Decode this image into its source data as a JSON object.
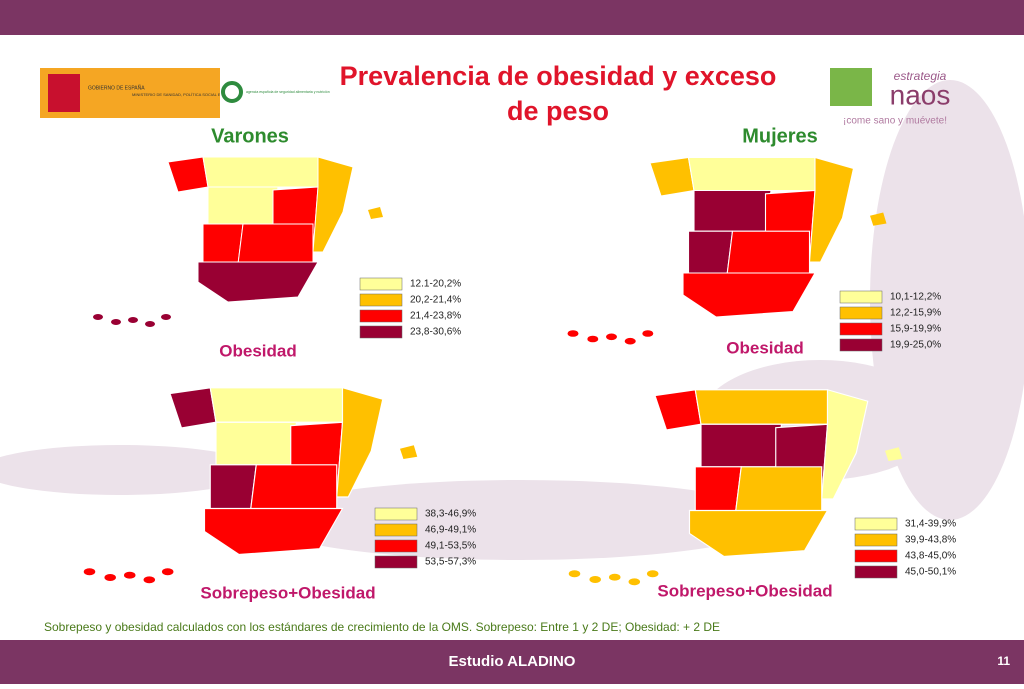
{
  "header": {
    "title": [
      "Prevalencia de obesidad y exceso",
      "de peso"
    ],
    "logo_left": [
      "GOBIERNO DE ESPAÑA",
      "MINISTERIO DE SANIDAD, POLÍTICA SOCIAL E IGUALDAD",
      "agencia española de seguridad alimentaria y nutrición"
    ],
    "logo_right": {
      "tag": "estrategia",
      "name": "naos",
      "slogan": "¡come sano y muévete!"
    }
  },
  "columns": [
    "Varones",
    "Mujeres"
  ],
  "legend_colors": [
    "#ffff99",
    "#ffc000",
    "#ff0000",
    "#990033"
  ],
  "maps": [
    {
      "label": "Obesidad",
      "legend": [
        "12.1-20,2%",
        "20,2-21,4%",
        "21,4-23,8%",
        "23,8-30,6%"
      ]
    },
    {
      "label": "Obesidad",
      "legend": [
        "10,1-12,2%",
        "12,2-15,9%",
        "15,9-19,9%",
        "19,9-25,0%"
      ]
    },
    {
      "label": "Sobrepeso+Obesidad",
      "legend": [
        "38,3-46,9%",
        "46,9-49,1%",
        "49,1-53,5%",
        "53,5-57,3%"
      ]
    },
    {
      "label": "Sobrepeso+Obesidad",
      "legend": [
        "31,4-39,9%",
        "39,9-43,8%",
        "43,8-45,0%",
        "45,0-50,1%"
      ]
    }
  ],
  "note": "Sobrepeso y obesidad calculados con los estándares de crecimiento de la OMS. Sobrepeso: Entre 1 y 2 DE; Obesidad: + 2 DE",
  "footer": {
    "title": "Estudio ALADINO",
    "page": "11"
  }
}
